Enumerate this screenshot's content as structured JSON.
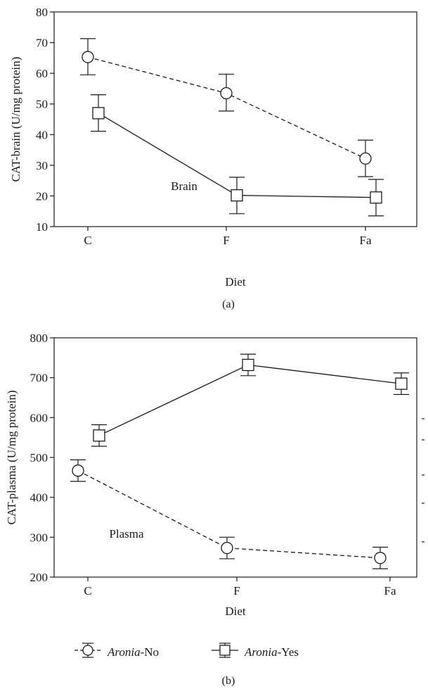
{
  "chart_data": [
    {
      "panel": "(a)",
      "type": "line",
      "xlabel": "Diet",
      "ylabel": "CAT-brain (U/mg protein)",
      "categories": [
        "C",
        "F",
        "Fa"
      ],
      "ylim": [
        10,
        80
      ],
      "yticks": [
        10,
        20,
        30,
        40,
        50,
        60,
        70,
        80
      ],
      "annotation": "Brain",
      "series": [
        {
          "key": "no",
          "marker": "circle",
          "line": "dashed",
          "values": [
            65.3,
            53.5,
            32.2
          ],
          "err_low": [
            59.5,
            47.7,
            26.3
          ],
          "err_high": [
            71.3,
            59.7,
            38.2
          ]
        },
        {
          "key": "yes",
          "marker": "square",
          "line": "solid",
          "values": [
            47.0,
            20.2,
            19.5
          ],
          "err_low": [
            41.1,
            14.2,
            13.5
          ],
          "err_high": [
            53.0,
            26.1,
            25.4
          ]
        }
      ]
    },
    {
      "panel": "(b)",
      "type": "line",
      "xlabel": "Diet",
      "ylabel": "CAT-plasma (U/mg protein)",
      "categories": [
        "C",
        "F",
        "Fa"
      ],
      "ylim": [
        200,
        800
      ],
      "yticks": [
        200,
        300,
        400,
        500,
        600,
        700,
        800
      ],
      "annotation": "Plasma",
      "series": [
        {
          "key": "no",
          "marker": "circle",
          "line": "dashed",
          "values": [
            467,
            273,
            248
          ],
          "err_low": [
            440,
            246,
            221
          ],
          "err_high": [
            494,
            300,
            275
          ]
        },
        {
          "key": "yes",
          "marker": "square",
          "line": "solid",
          "values": [
            555,
            732,
            685
          ],
          "err_low": [
            528,
            705,
            658
          ],
          "err_high": [
            582,
            759,
            712
          ]
        }
      ]
    }
  ],
  "legend": {
    "items": [
      {
        "key": "no",
        "marker": "circle",
        "italic": "Aronia",
        "suffix": "-No"
      },
      {
        "key": "yes",
        "marker": "square",
        "italic": "Aronia",
        "suffix": "-Yes"
      }
    ]
  }
}
